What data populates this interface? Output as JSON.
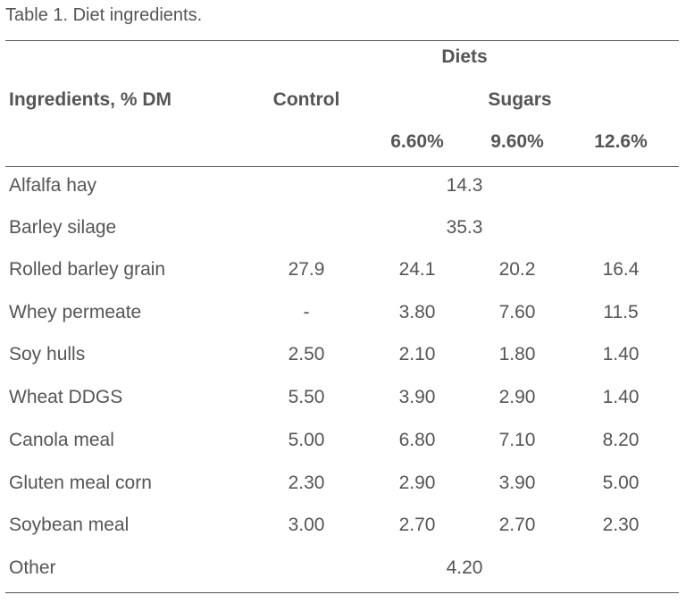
{
  "caption": "Table 1. Diet ingredients.",
  "header": {
    "group": "Diets",
    "ingredients": "Ingredients, % DM",
    "control": "Control",
    "sugars": "Sugars",
    "levels": [
      "6.60%",
      "9.60%",
      "12.6%"
    ]
  },
  "rows": [
    {
      "name": "Alfalfa hay",
      "span": "14.3"
    },
    {
      "name": "Barley silage",
      "span": "35.3"
    },
    {
      "name": "Rolled barley grain",
      "control": "27.9",
      "s1": "24.1",
      "s2": "20.2",
      "s3": "16.4"
    },
    {
      "name": "Whey permeate",
      "control": "-",
      "s1": "3.80",
      "s2": "7.60",
      "s3": "11.5"
    },
    {
      "name": "Soy hulls",
      "control": "2.50",
      "s1": "2.10",
      "s2": "1.80",
      "s3": "1.40"
    },
    {
      "name": "Wheat DDGS",
      "control": "5.50",
      "s1": "3.90",
      "s2": "2.90",
      "s3": "1.40"
    },
    {
      "name": "Canola meal",
      "control": "5.00",
      "s1": "6.80",
      "s2": "7.10",
      "s3": "8.20"
    },
    {
      "name": "Gluten meal corn",
      "control": "2.30",
      "s1": "2.90",
      "s2": "3.90",
      "s3": "5.00"
    },
    {
      "name": "Soybean meal",
      "control": "3.00",
      "s1": "2.70",
      "s2": "2.70",
      "s3": "2.30"
    },
    {
      "name": "Other",
      "span": "4.20"
    }
  ]
}
